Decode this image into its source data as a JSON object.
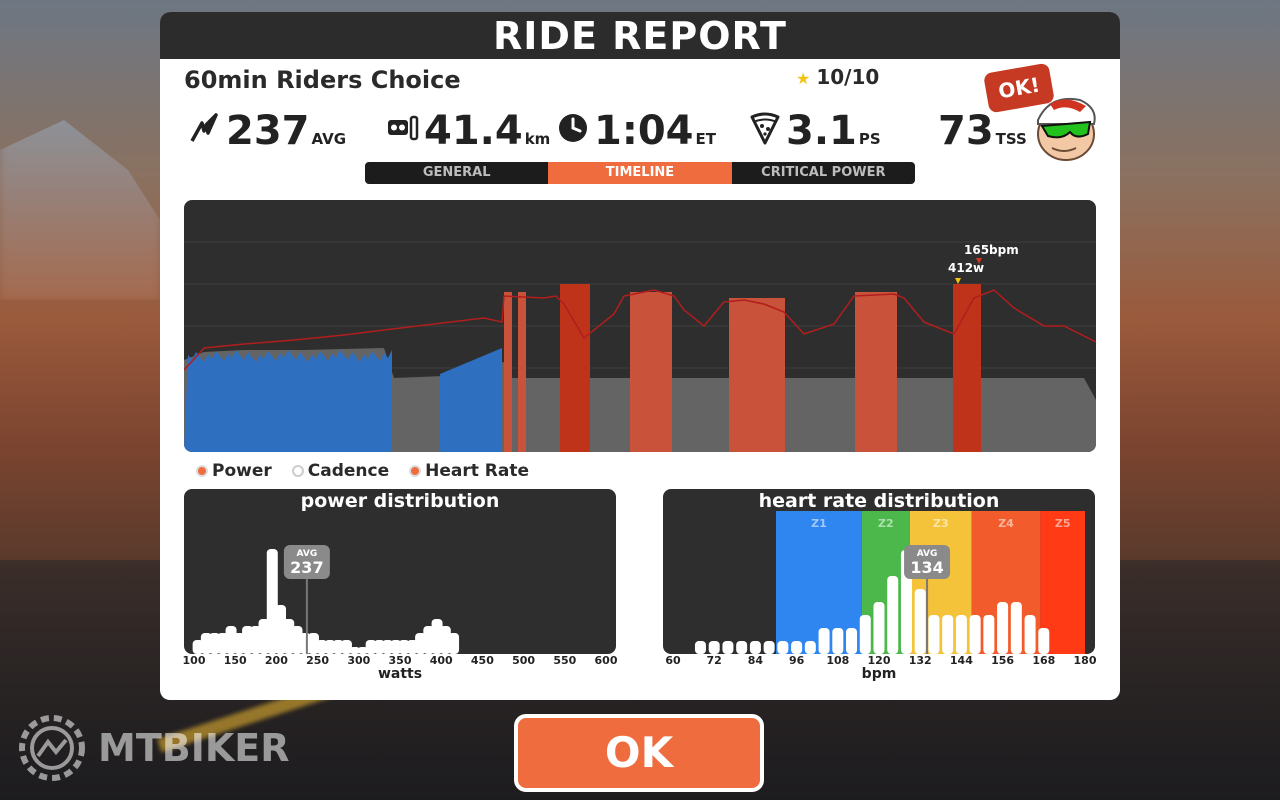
{
  "header": {
    "title": "RIDE REPORT"
  },
  "ride": {
    "name": "60min Riders Choice",
    "rating": "10/10"
  },
  "stats": {
    "power": {
      "value": "237",
      "unit": "AVG",
      "icon": "power-bolt-icon"
    },
    "distance": {
      "value": "41.4",
      "unit": "km",
      "icon": "distance-icon"
    },
    "time": {
      "value": "1:04",
      "unit": "ET",
      "icon": "clock-icon"
    },
    "pizza": {
      "value": "3.1",
      "unit": "PS",
      "icon": "pizza-icon"
    },
    "tss": {
      "value": "73",
      "unit": "TSS"
    }
  },
  "avatar": {
    "bubble": "OK!"
  },
  "tabs": [
    {
      "label": "GENERAL",
      "active": false
    },
    {
      "label": "TIMELINE",
      "active": true
    },
    {
      "label": "CRITICAL POWER",
      "active": false
    }
  ],
  "timeline": {
    "markers": {
      "power_peak": "412w",
      "hr_peak": "165bpm"
    },
    "colors": {
      "power_fill": "#646464",
      "blue": "#2f6fc0",
      "red": "#c0331b",
      "orange": "#c9523a",
      "hr": "#b21d1d"
    }
  },
  "legend": [
    {
      "label": "Power",
      "on": true
    },
    {
      "label": "Cadence",
      "on": false
    },
    {
      "label": "Heart Rate",
      "on": true
    }
  ],
  "chart_data": [
    {
      "type": "bar",
      "title": "power distribution",
      "xlabel": "watts",
      "x_ticks": [
        "100",
        "150",
        "200",
        "250",
        "300",
        "350",
        "400",
        "450",
        "500",
        "550",
        "600"
      ],
      "xlim": [
        100,
        600
      ],
      "avg_label": "AVG",
      "avg_value": "237",
      "bins_x": [
        105,
        115,
        125,
        135,
        145,
        155,
        165,
        175,
        185,
        195,
        205,
        215,
        225,
        235,
        245,
        255,
        265,
        275,
        285,
        295,
        305,
        315,
        325,
        335,
        345,
        355,
        365,
        375,
        385,
        395,
        405,
        415,
        425
      ],
      "bins_y": [
        2,
        3,
        3,
        3,
        4,
        3,
        4,
        4,
        5,
        15,
        7,
        5,
        4,
        3,
        3,
        2,
        2,
        2,
        2,
        1,
        1,
        2,
        2,
        2,
        2,
        2,
        2,
        3,
        4,
        5,
        4,
        3,
        0
      ]
    },
    {
      "type": "bar",
      "title": "heart rate distribution",
      "xlabel": "bpm",
      "x_ticks": [
        "60",
        "72",
        "84",
        "96",
        "108",
        "120",
        "132",
        "144",
        "156",
        "168",
        "180"
      ],
      "xlim": [
        60,
        180
      ],
      "zones": [
        {
          "name": "Z1",
          "from": 90,
          "to": 115,
          "color": "#2f86f0"
        },
        {
          "name": "Z2",
          "from": 115,
          "to": 129,
          "color": "#4cb84c"
        },
        {
          "name": "Z3",
          "from": 129,
          "to": 147,
          "color": "#f5c33a"
        },
        {
          "name": "Z4",
          "from": 147,
          "to": 167,
          "color": "#f25c2c"
        },
        {
          "name": "Z5",
          "from": 167,
          "to": 180,
          "color": "#ff3a14"
        }
      ],
      "avg_label": "AVG",
      "avg_value": "134",
      "bins_x": [
        68,
        72,
        76,
        80,
        84,
        88,
        92,
        96,
        100,
        104,
        108,
        112,
        116,
        120,
        124,
        128,
        132,
        136,
        140,
        144,
        148,
        152,
        156,
        160,
        164,
        168
      ],
      "bins_y": [
        1,
        1,
        1,
        1,
        1,
        1,
        1,
        1,
        1,
        2,
        2,
        2,
        3,
        4,
        6,
        8,
        5,
        3,
        3,
        3,
        3,
        3,
        4,
        4,
        3,
        2
      ]
    }
  ],
  "ok_button": {
    "label": "OK"
  },
  "watermark": {
    "text": "MTBIKER"
  }
}
